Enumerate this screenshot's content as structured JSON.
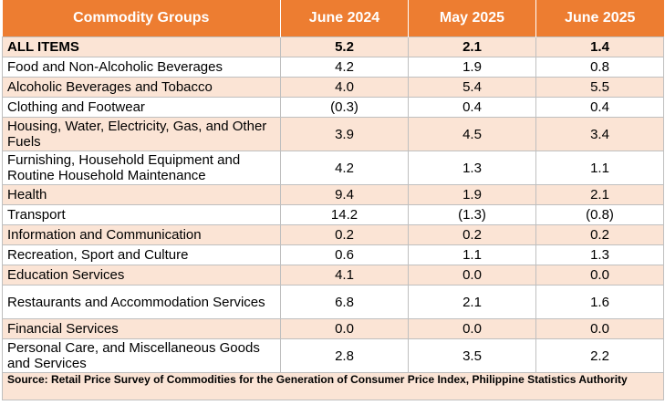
{
  "table": {
    "headers": [
      "Commodity Groups",
      "June 2024",
      "May 2025",
      "June 2025"
    ],
    "rows": [
      {
        "label": "ALL ITEMS",
        "values": [
          "5.2",
          "2.1",
          "1.4"
        ]
      },
      {
        "label": "Food and Non-Alcoholic Beverages",
        "values": [
          "4.2",
          "1.9",
          "0.8"
        ]
      },
      {
        "label": "Alcoholic Beverages and Tobacco",
        "values": [
          "4.0",
          "5.4",
          "5.5"
        ]
      },
      {
        "label": "Clothing and Footwear",
        "values": [
          "(0.3)",
          "0.4",
          "0.4"
        ]
      },
      {
        "label": "Housing, Water, Electricity, Gas, and Other Fuels",
        "values": [
          "3.9",
          "4.5",
          "3.4"
        ]
      },
      {
        "label": "Furnishing, Household Equipment and Routine Household Maintenance",
        "values": [
          "4.2",
          "1.3",
          "1.1"
        ]
      },
      {
        "label": "Health",
        "values": [
          "9.4",
          "1.9",
          "2.1"
        ]
      },
      {
        "label": "Transport",
        "values": [
          "14.2",
          "(1.3)",
          "(0.8)"
        ]
      },
      {
        "label": "Information and Communication",
        "values": [
          "0.2",
          "0.2",
          "0.2"
        ]
      },
      {
        "label": "Recreation, Sport and Culture",
        "values": [
          "0.6",
          "1.1",
          "1.3"
        ]
      },
      {
        "label": "Education Services",
        "values": [
          "4.1",
          "0.0",
          "0.0"
        ]
      },
      {
        "label": "Restaurants and Accommodation Services",
        "values": [
          "6.8",
          "2.1",
          "1.6"
        ]
      },
      {
        "label": "Financial Services",
        "values": [
          "0.0",
          "0.0",
          "0.0"
        ]
      },
      {
        "label": "Personal Care, and Miscellaneous Goods and Services",
        "values": [
          "2.8",
          "3.5",
          "2.2"
        ]
      }
    ],
    "source": "Source: Retail Price Survey of Commodities for the Generation of Consumer Price Index, Philippine Statistics Authority"
  },
  "colors": {
    "header_bg": "#ED7D31",
    "header_text": "#FFFFFF",
    "band": "#FBE4D5",
    "grid": "#BFBFBF"
  }
}
